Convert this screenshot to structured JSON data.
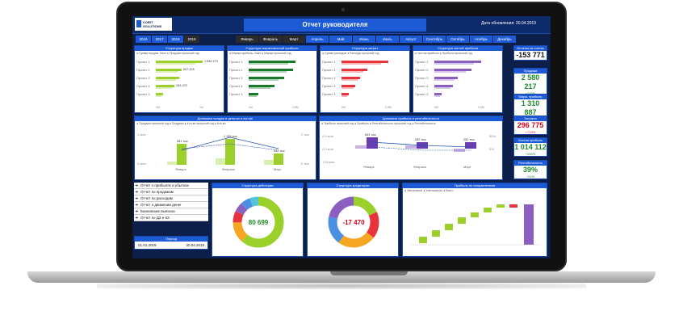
{
  "header": {
    "logo_line1": "COBIT",
    "logo_line2": "SOLUTIONS",
    "title": "Отчет руководителя",
    "updated": "Дата обновления: 30.04.2019"
  },
  "years": [
    "2016",
    "2017",
    "2018",
    "2019"
  ],
  "selected_year": "2019",
  "months": [
    "Январь",
    "Февраль",
    "Март",
    "Апрель",
    "Май",
    "Июнь",
    "Июль",
    "Август",
    "Сентябрь",
    "Октябрь",
    "Ноябрь",
    "Декабрь"
  ],
  "selected_months": [
    "Январь",
    "Февраль",
    "Март"
  ],
  "panels": {
    "sales": {
      "title": "Структура продаж",
      "legend": "● Сумма продаж, Базо  ● Продажи прошлый год",
      "rows": [
        {
          "label": "Проект 1",
          "value": "1 534 479",
          "pct": 1.0
        },
        {
          "label": "Проект 2",
          "value": "647 478",
          "pct": 0.55
        },
        {
          "label": "Проект 3",
          "value": "",
          "pct": 0.5
        },
        {
          "label": "Проект 4",
          "value": "245 472",
          "pct": 0.4
        },
        {
          "label": "Проект 3",
          "value": "",
          "pct": 0.15
        }
      ],
      "ticks": [
        "0М",
        "1М"
      ],
      "color": "#9bd02b"
    },
    "margin": {
      "title": "Структура маржинальной прибыли",
      "legend": "● Маржа прибыль, Базо  ● Маржа прошлый год",
      "rows": [
        {
          "label": "Проект 1",
          "value": "",
          "pct": 1.0
        },
        {
          "label": "Проект 2",
          "value": "",
          "pct": 0.95
        },
        {
          "label": "Проект 3",
          "value": "",
          "pct": 0.75
        },
        {
          "label": "Проект 4",
          "value": "",
          "pct": 0.55
        },
        {
          "label": "Проект 3",
          "value": "",
          "pct": 0.2
        }
      ],
      "ticks": [
        "0М",
        "0,5М"
      ],
      "color": "#1a7a2a"
    },
    "costs": {
      "title": "Структура затрат",
      "legend": "● Сумма расходов  ● Расходы прошлый год",
      "rows": [
        {
          "label": "Проект 1",
          "value": "",
          "pct": 1.0
        },
        {
          "label": "Проект 2",
          "value": "",
          "pct": 0.55
        },
        {
          "label": "Проект 3",
          "value": "",
          "pct": 0.4
        },
        {
          "label": "Проект 4",
          "value": "",
          "pct": 0.3
        },
        {
          "label": "Проект 3",
          "value": "",
          "pct": 0.15
        }
      ],
      "ticks": [
        "0М",
        "0,5М"
      ],
      "color": "#e8323c"
    },
    "net": {
      "title": "Структура чистой прибыли",
      "legend": "● Чистая прибыль  ● Прибыль прошлый год",
      "rows": [
        {
          "label": "Проект 1",
          "value": "",
          "pct": 1.0
        },
        {
          "label": "Проект 2",
          "value": "",
          "pct": 0.8
        },
        {
          "label": "Проект 3",
          "value": "",
          "pct": 0.5
        },
        {
          "label": "Проект 4",
          "value": "",
          "pct": 0.4
        },
        {
          "label": "Проект 3",
          "value": "",
          "pct": 0.15
        }
      ],
      "ticks": [
        "0М",
        "0,5М"
      ],
      "color": "#8a5fbf"
    }
  },
  "kpis": [
    {
      "title": "Остаток на счетах",
      "value": "-153 771",
      "sub": "",
      "color": "#111111"
    },
    {
      "title": "Продажи",
      "value": "2 580 217",
      "sub": "+375%",
      "color": "#1e8a2c"
    },
    {
      "title": "Марж. прибыль",
      "value": "1 310 887",
      "sub": "+370%",
      "color": "#1e8a2c"
    },
    {
      "title": "Затраты",
      "value": "296 775",
      "sub": "+713%",
      "color": "#d0021b"
    },
    {
      "title": "Чистая прибыль",
      "value": "1 014 112",
      "sub": "+256%",
      "color": "#1e8a2c"
    },
    {
      "title": "Рентабельность",
      "value": "39%",
      "sub": "+24%",
      "color": "#1e8a2c"
    }
  ],
  "dyn_sales": {
    "title": "Динамика продаж в деньгах и кол-ве",
    "legend": "● Продажи прошлый год  ● Продажи  ● Кол-во прошлый год  ● Кол-во",
    "months": [
      "Январь",
      "Февраль",
      "Март"
    ],
    "labels": [
      "981 тыс",
      "1 155 тыс",
      "442 тыс"
    ],
    "yleft": [
      "1 млн",
      "0 млн"
    ],
    "yright": [
      "2 тыс",
      "0 тыс"
    ]
  },
  "dyn_profit": {
    "title": "Динамика прибыли и рентабельности",
    "legend": "● Прибыль прошлый год  ● Прибыль  ● Рентабельность прошлый год  ● Рентабельность",
    "months": [
      "Январь",
      "Февраль",
      "Март"
    ],
    "labels": [
      "543 тыс",
      "282 тыс",
      "251 тыс"
    ],
    "yleft": [
      "0,5 млн",
      "0,0 млн",
      "-0,5 млн"
    ],
    "yright": [
      "50%",
      "0%"
    ]
  },
  "nav": [
    "Отчет о прибылях и убытках",
    "Отчет по продажам",
    "Отчет по расходам",
    "Отчет о движении денег",
    "Банковские выписки",
    "Отчет по ДЗ и КЗ"
  ],
  "period": {
    "title": "Период",
    "from": "01.01.2019",
    "to": "30.04.2019"
  },
  "receivables": {
    "title": "Структура дебиторки",
    "center": "80 699"
  },
  "payables": {
    "title": "Структура кредиторки",
    "center": "-17 470"
  },
  "waterfall": {
    "title": "Прибыль по направлениям",
    "legend": "● Увеличение  ● Уменьшение  ● Всего"
  },
  "chart_data": [
    {
      "type": "bar",
      "title": "Структура продаж",
      "categories": [
        "Проект 1",
        "Проект 2",
        "Проект 3",
        "Проект 4",
        "Проект 3"
      ],
      "series": [
        {
          "name": "Сумма продаж, Базо",
          "values": [
            1534479,
            647478,
            null,
            245472,
            null
          ]
        }
      ]
    },
    {
      "type": "bar",
      "title": "Динамика продаж в деньгах и кол-ве",
      "categories": [
        "Январь",
        "Февраль",
        "Март"
      ],
      "series": [
        {
          "name": "Продажи",
          "values": [
            981000,
            1155000,
            442000
          ]
        }
      ]
    },
    {
      "type": "bar",
      "title": "Динамика прибыли и рентабельности",
      "categories": [
        "Январь",
        "Февраль",
        "Март"
      ],
      "series": [
        {
          "name": "Прибыль",
          "values": [
            543000,
            282000,
            251000
          ]
        }
      ]
    }
  ]
}
